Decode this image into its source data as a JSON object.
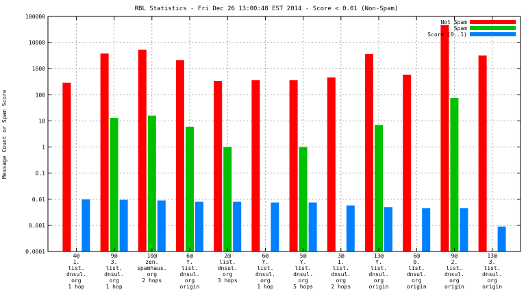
{
  "chart_data": {
    "type": "bar",
    "title": "RBL Statistics - Fri Dec 26 13:00:48 EST 2014 - Score < 0.01 (Non-Spam)",
    "ylabel": "Message Count or Spam Score",
    "xlabel": "",
    "yscale": "log",
    "ylim": [
      0.0001,
      100000
    ],
    "grid": true,
    "legend_position": "top-right",
    "y_ticks": [
      "0.0001",
      "0.001",
      "0.01",
      "0.1",
      "1",
      "10",
      "100",
      "1000",
      "10000",
      "100000"
    ],
    "categories": [
      [
        "4@",
        "1.",
        "list.",
        "dnsul.",
        "org",
        "1 hop"
      ],
      [
        "9@",
        "3.",
        "list.",
        "dnsul.",
        "org",
        "1 hop"
      ],
      [
        "10@",
        "zen.",
        "spamhaus.",
        "org",
        "2 hops"
      ],
      [
        "6@",
        "Y.",
        "list.",
        "dnsul.",
        "org",
        "origin"
      ],
      [
        "2@",
        "list.",
        "dnsul.",
        "org",
        "3 hops"
      ],
      [
        "6@",
        "Y.",
        "list.",
        "dnsul.",
        "org",
        "1 hop"
      ],
      [
        "5@",
        "Y.",
        "list.",
        "dnsul.",
        "org",
        "5 hops"
      ],
      [
        "3@",
        "1.",
        "list.",
        "dnsul.",
        "org",
        "2 hops"
      ],
      [
        "13@",
        "Y.",
        "list.",
        "dnsul.",
        "org",
        "origin"
      ],
      [
        "6@",
        "0.",
        "list.",
        "dnsul.",
        "org",
        "origin"
      ],
      [
        "9@",
        "2.",
        "list.",
        "dnsul.",
        "org",
        "origin"
      ],
      [
        "13@",
        "3.",
        "list.",
        "dnsul.",
        "org",
        "origin"
      ]
    ],
    "series": [
      {
        "name": "Not Spam",
        "color": "#ff0000",
        "values": [
          290,
          3800,
          5300,
          2100,
          340,
          360,
          360,
          460,
          3600,
          590,
          47000,
          3200
        ]
      },
      {
        "name": "Spam",
        "color": "#00c000",
        "values": [
          null,
          13,
          16,
          6,
          1,
          null,
          1,
          null,
          7,
          null,
          75,
          null
        ]
      },
      {
        "name": "Score (0..1)",
        "color": "#0080ff",
        "values": [
          0.0098,
          0.0095,
          0.009,
          0.008,
          0.008,
          0.0075,
          0.0075,
          0.0058,
          0.005,
          0.0045,
          0.0045,
          0.0009
        ]
      }
    ]
  }
}
